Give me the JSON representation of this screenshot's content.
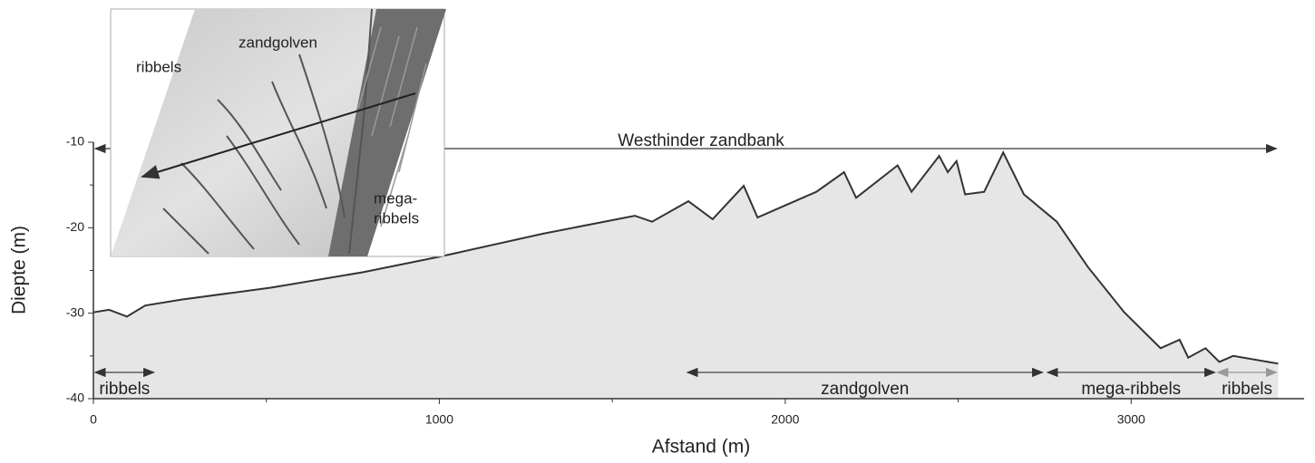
{
  "chart_data": {
    "type": "area",
    "x_label": "Afstand (m)",
    "y_label": "Diepte (m)",
    "x": [
      0,
      45,
      97,
      150,
      255,
      515,
      780,
      1000,
      1300,
      1565,
      1615,
      1720,
      1790,
      1880,
      1920,
      2090,
      2170,
      2205,
      2325,
      2365,
      2445,
      2470,
      2495,
      2520,
      2575,
      2630,
      2690,
      2785,
      2875,
      2980,
      3085,
      3140,
      3165,
      3215,
      3255,
      3295,
      3425
    ],
    "values": [
      -29.9,
      -29.6,
      -30.4,
      -29.1,
      -28.4,
      -27,
      -25.2,
      -23.4,
      -20.7,
      -18.6,
      -19.3,
      -16.9,
      -19,
      -15.1,
      -18.8,
      -15.8,
      -13.5,
      -16.5,
      -12.7,
      -15.8,
      -11.6,
      -13.5,
      -12.2,
      -16.1,
      -15.8,
      -11.2,
      -16.1,
      -19.3,
      -24.6,
      -29.9,
      -34.1,
      -33.1,
      -35.2,
      -34.1,
      -35.7,
      -35,
      -35.9
    ],
    "color": "#333333",
    "fill": "#e6e6e6",
    "xlim": [
      0,
      3500
    ],
    "ylim": [
      -40,
      -10
    ],
    "xticks": [
      0,
      1000,
      2000,
      3000
    ],
    "xminorticks": [
      500,
      1500,
      2500
    ],
    "yticks": [
      -10,
      -20,
      -30,
      -40
    ],
    "yminorticks": [
      -15,
      -25,
      -35
    ],
    "span_top": {
      "text": "Westhinder zandbank",
      "start": 0,
      "end": 3420
    },
    "spans": [
      {
        "text": "ribbels",
        "start": 5,
        "end": 175,
        "color": "#444444"
      },
      {
        "text": "zandgolven",
        "start": 1717,
        "end": 2744,
        "color": "#444444"
      },
      {
        "text": "mega-ribbels",
        "start": 2758,
        "end": 3242,
        "color": "#444444"
      },
      {
        "text": "ribbels",
        "start": 3250,
        "end": 3420,
        "color": "#999999"
      }
    ],
    "inset_labels": [
      "ribbels",
      "zandgolven",
      "mega-",
      "ribbels"
    ]
  }
}
